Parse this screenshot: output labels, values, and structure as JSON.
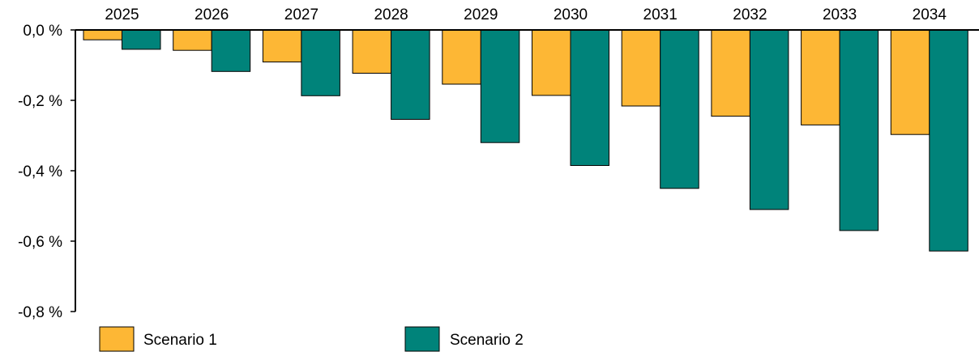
{
  "chart_data": {
    "type": "bar",
    "categories": [
      "2025",
      "2026",
      "2027",
      "2028",
      "2029",
      "2030",
      "2031",
      "2032",
      "2033",
      "2034"
    ],
    "series": [
      {
        "name": "Scenario 1",
        "color": "#FDB735",
        "values": [
          -0.028,
          -0.058,
          -0.091,
          -0.123,
          -0.154,
          -0.186,
          -0.216,
          -0.245,
          -0.27,
          -0.297
        ]
      },
      {
        "name": "Scenario 2",
        "color": "#00837A",
        "values": [
          -0.055,
          -0.118,
          -0.187,
          -0.254,
          -0.32,
          -0.385,
          -0.45,
          -0.51,
          -0.57,
          -0.628
        ]
      }
    ],
    "ylim": [
      -0.8,
      0.0
    ],
    "yticks": [
      0.0,
      -0.2,
      -0.4,
      -0.6,
      -0.8
    ],
    "ytick_labels": [
      "0,0 %",
      "-0,2 %",
      "-0,4 %",
      "-0,6 %",
      "-0,8 %"
    ],
    "x_axis_position": "top",
    "grid": false,
    "legend_position": "bottom",
    "title": "",
    "xlabel": "",
    "ylabel": ""
  }
}
